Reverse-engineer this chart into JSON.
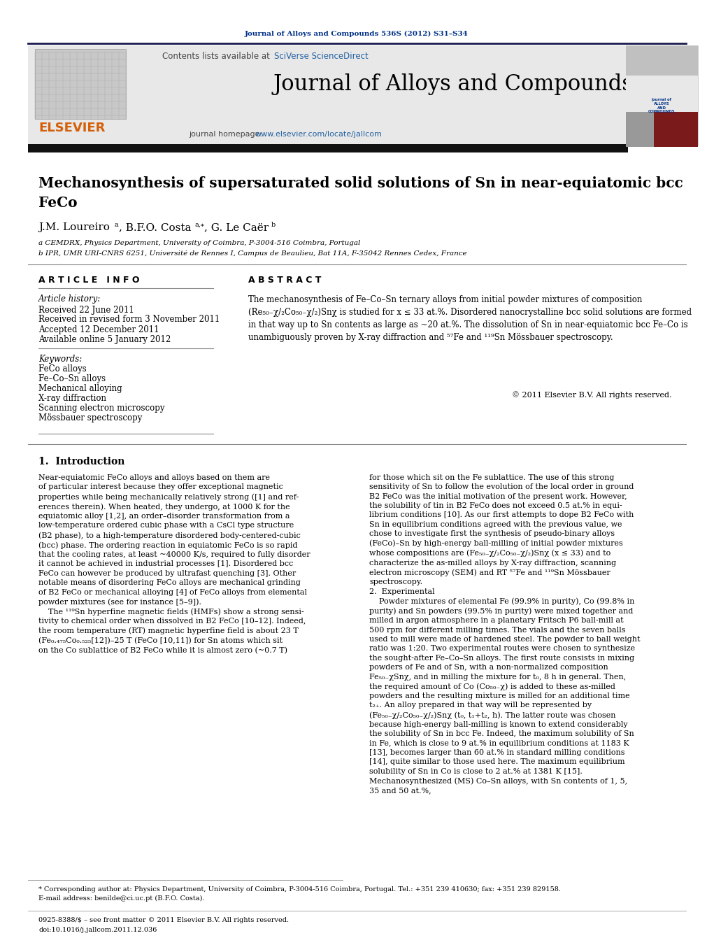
{
  "journal_ref": "Journal of Alloys and Compounds 536S (2012) S31–S34",
  "contents_text": "Contents lists available at ",
  "sciverse_text": "SciVerse ScienceDirect",
  "journal_title": "Journal of Alloys and Compounds",
  "journal_homepage_text": "journal homepage: ",
  "journal_url": "www.elsevier.com/locate/jallcom",
  "paper_title_line1": "Mechanosynthesis of supersaturated solid solutions of Sn in near-equiatomic bcc",
  "paper_title_line2": "FeCo",
  "affil_a": "a CEMDRX, Physics Department, University of Coimbra, P-3004-516 Coimbra, Portugal",
  "affil_b": "b IPR, UMR URI-CNRS 6251, Université de Rennes I, Campus de Beaulieu, Bat 11A, F-35042 Rennes Cedex, France",
  "article_info_label": "A R T I C L E   I N F O",
  "abstract_label": "A B S T R A C T",
  "article_history_label": "Article history:",
  "received": "Received 22 June 2011",
  "received_revised": "Received in revised form 3 November 2011",
  "accepted": "Accepted 12 December 2011",
  "available_online": "Available online 5 January 2012",
  "keywords_label": "Keywords:",
  "keywords": [
    "FeCo alloys",
    "Fe–Co–Sn alloys",
    "Mechanical alloying",
    "X-ray diffraction",
    "Scanning electron microscopy",
    "Mössbauer spectroscopy"
  ],
  "abstract_text": "The mechanosynthesis of Fe–Co–Sn ternary alloys from initial powder mixtures of composition\n(Re₅₀₋χ/₂Co₅₀₋χ/₂)Snχ is studied for x ≤ 33 at.%. Disordered nanocrystalline bcc solid solutions are formed\nin that way up to Sn contents as large as ~20 at.%. The dissolution of Sn in near-equiatomic bcc Fe–Co is\nunambiguously proven by X-ray diffraction and ⁵⁷Fe and ¹¹⁹Sn Mössbauer spectroscopy.",
  "copyright": "© 2011 Elsevier B.V. All rights reserved.",
  "intro_heading": "1.  Introduction",
  "intro_col1": "Near-equiatomic FeCo alloys and alloys based on them are\nof particular interest because they offer exceptional magnetic\nproperties while being mechanically relatively strong ([1] and ref-\nerences therein). When heated, they undergo, at 1000 K for the\nequiatomic alloy [1,2], an order–disorder transformation from a\nlow-temperature ordered cubic phase with a CsCl type structure\n(B2 phase), to a high-temperature disordered body-centered-cubic\n(bcc) phase. The ordering reaction in equiatomic FeCo is so rapid\nthat the cooling rates, at least ~40000 K/s, required to fully disorder\nit cannot be achieved in industrial processes [1]. Disordered bcc\nFeCo can however be produced by ultrafast quenching [3]. Other\nnotable means of disordering FeCo alloys are mechanical grinding\nof B2 FeCo or mechanical alloying [4] of FeCo alloys from elemental\npowder mixtures (see for instance [5–9]).\n    The ¹¹⁹Sn hyperfine magnetic fields (HMFs) show a strong sensi-\ntivity to chemical order when dissolved in B2 FeCo [10–12]. Indeed,\nthe room temperature (RT) magnetic hyperfine field is about 23 T\n(Fe₀.₄₇₅Co₀.₅₂₅[12])–25 T (FeCo [10,11]) for Sn atoms which sit\non the Co sublattice of B2 FeCo while it is almost zero (~0.7 T)",
  "intro_col2": "for those which sit on the Fe sublattice. The use of this strong\nsensitivity of Sn to follow the evolution of the local order in ground\nB2 FeCo was the initial motivation of the present work. However,\nthe solubility of tin in B2 FeCo does not exceed 0.5 at.% in equi-\nlibrium conditions [10]. As our first attempts to dope B2 FeCo with\nSn in equilibrium conditions agreed with the previous value, we\nchose to investigate first the synthesis of pseudo-binary alloys\n(FeCo)–Sn by high-energy ball-milling of initial powder mixtures\nwhose compositions are (Fe₅₀₋χ/₂Co₅₀₋χ/₂)Snχ (x ≤ 33) and to\ncharacterize the as-milled alloys by X-ray diffraction, scanning\nelectron microscopy (SEM) and RT ⁵⁷Fe and ¹¹⁹Sn Mössbauer\nspectroscopy.\n2.  Experimental\n    Powder mixtures of elemental Fe (99.9% in purity), Co (99.8% in\npurity) and Sn powders (99.5% in purity) were mixed together and\nmilled in argon atmosphere in a planetary Fritsch P6 ball-mill at\n500 rpm for different milling times. The vials and the seven balls\nused to mill were made of hardened steel. The powder to ball weight\nratio was 1:20. Two experimental routes were chosen to synthesize\nthe sought-after Fe–Co–Sn alloys. The first route consists in mixing\npowders of Fe and of Sn, with a non-normalized composition\nFe₅₀₋χSnχ, and in milling the mixture for t₀, 8 h in general. Then,\nthe required amount of Co (Co₅₀₋χ) is added to these as-milled\npowders and the resulting mixture is milled for an additional time\nt₂₊. An alloy prepared in that way will be represented by\n(Fe₅₀₋χ/₂Co₅₀₋χ/₂)Snχ (t₀, t₁+t₂, h). The latter route was chosen\nbecause high-energy ball-milling is known to extend considerably\nthe solubility of Sn in bcc Fe. Indeed, the maximum solubility of Sn\nin Fe, which is close to 9 at.% in equilibrium conditions at 1183 K\n[13], becomes larger than 60 at.% in standard milling conditions\n[14], quite similar to those used here. The maximum equilibrium\nsolubility of Sn in Co is close to 2 at.% at 1381 K [15].\nMechanosynthesized (MS) Co–Sn alloys, with Sn contents of 1, 5,\n35 and 50 at.%,",
  "footnote_star": "* Corresponding author at: Physics Department, University of Coimbra, P-3004-516 Coimbra, Portugal. Tel.: +351 239 410630; fax: +351 239 829158.",
  "footnote_email": "E-mail address: benilde@ci.uc.pt (B.F.O. Costa).",
  "issn": "0925-8388/$ – see front matter © 2011 Elsevier B.V. All rights reserved.",
  "doi": "doi:10.1016/j.jallcom.2011.12.036",
  "bg_color": "#ffffff",
  "blue_color": "#003087",
  "link_color": "#2060a0",
  "orange_color": "#d4600a"
}
